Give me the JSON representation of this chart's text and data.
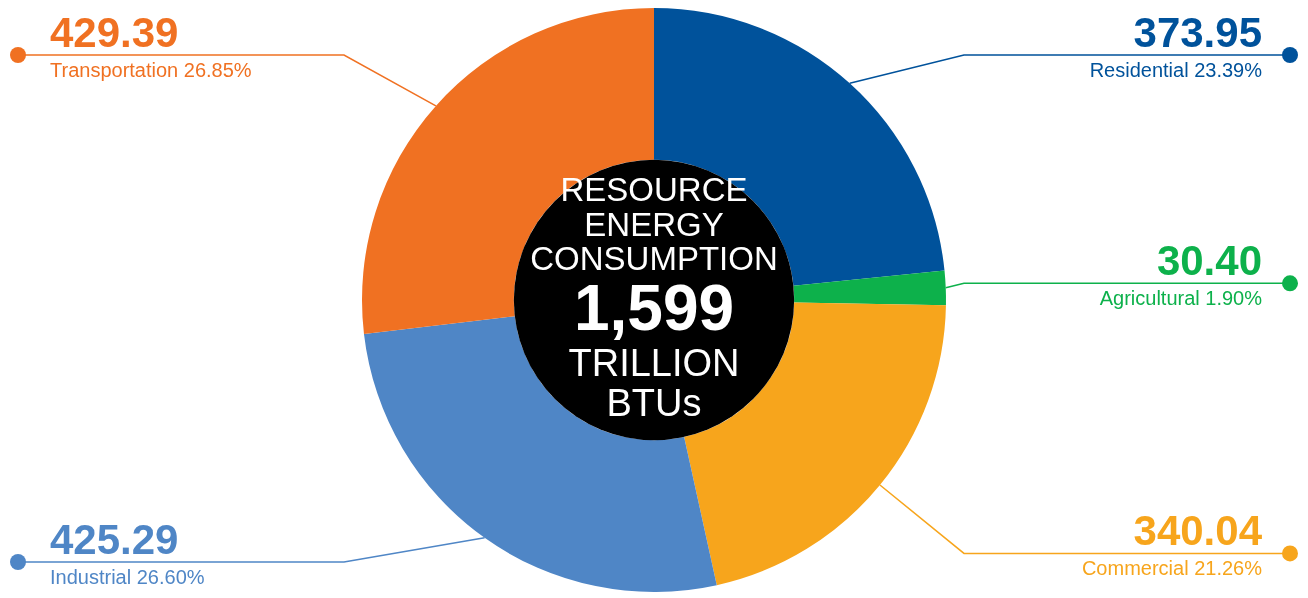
{
  "chart_data": {
    "type": "donut",
    "title": "RESOURCE ENERGY CONSUMPTION",
    "annotations": [
      "1,599",
      "TRILLION BTUs"
    ],
    "categories": [
      "Residential 23.39%",
      "Agricultural 1.90%",
      "Commercial 21.26%",
      "Industrial 26.60%",
      "Transportation 26.85%"
    ],
    "values": [
      373.95,
      30.4,
      340.04,
      425.29,
      429.39
    ],
    "colors": [
      "#00529b",
      "#0db14b",
      "#f7a51c",
      "#4f86c6",
      "#f07122"
    ],
    "value_labels": [
      "373.95",
      "30.40",
      "340.04",
      "425.29",
      "429.39"
    ],
    "legend": false
  }
}
